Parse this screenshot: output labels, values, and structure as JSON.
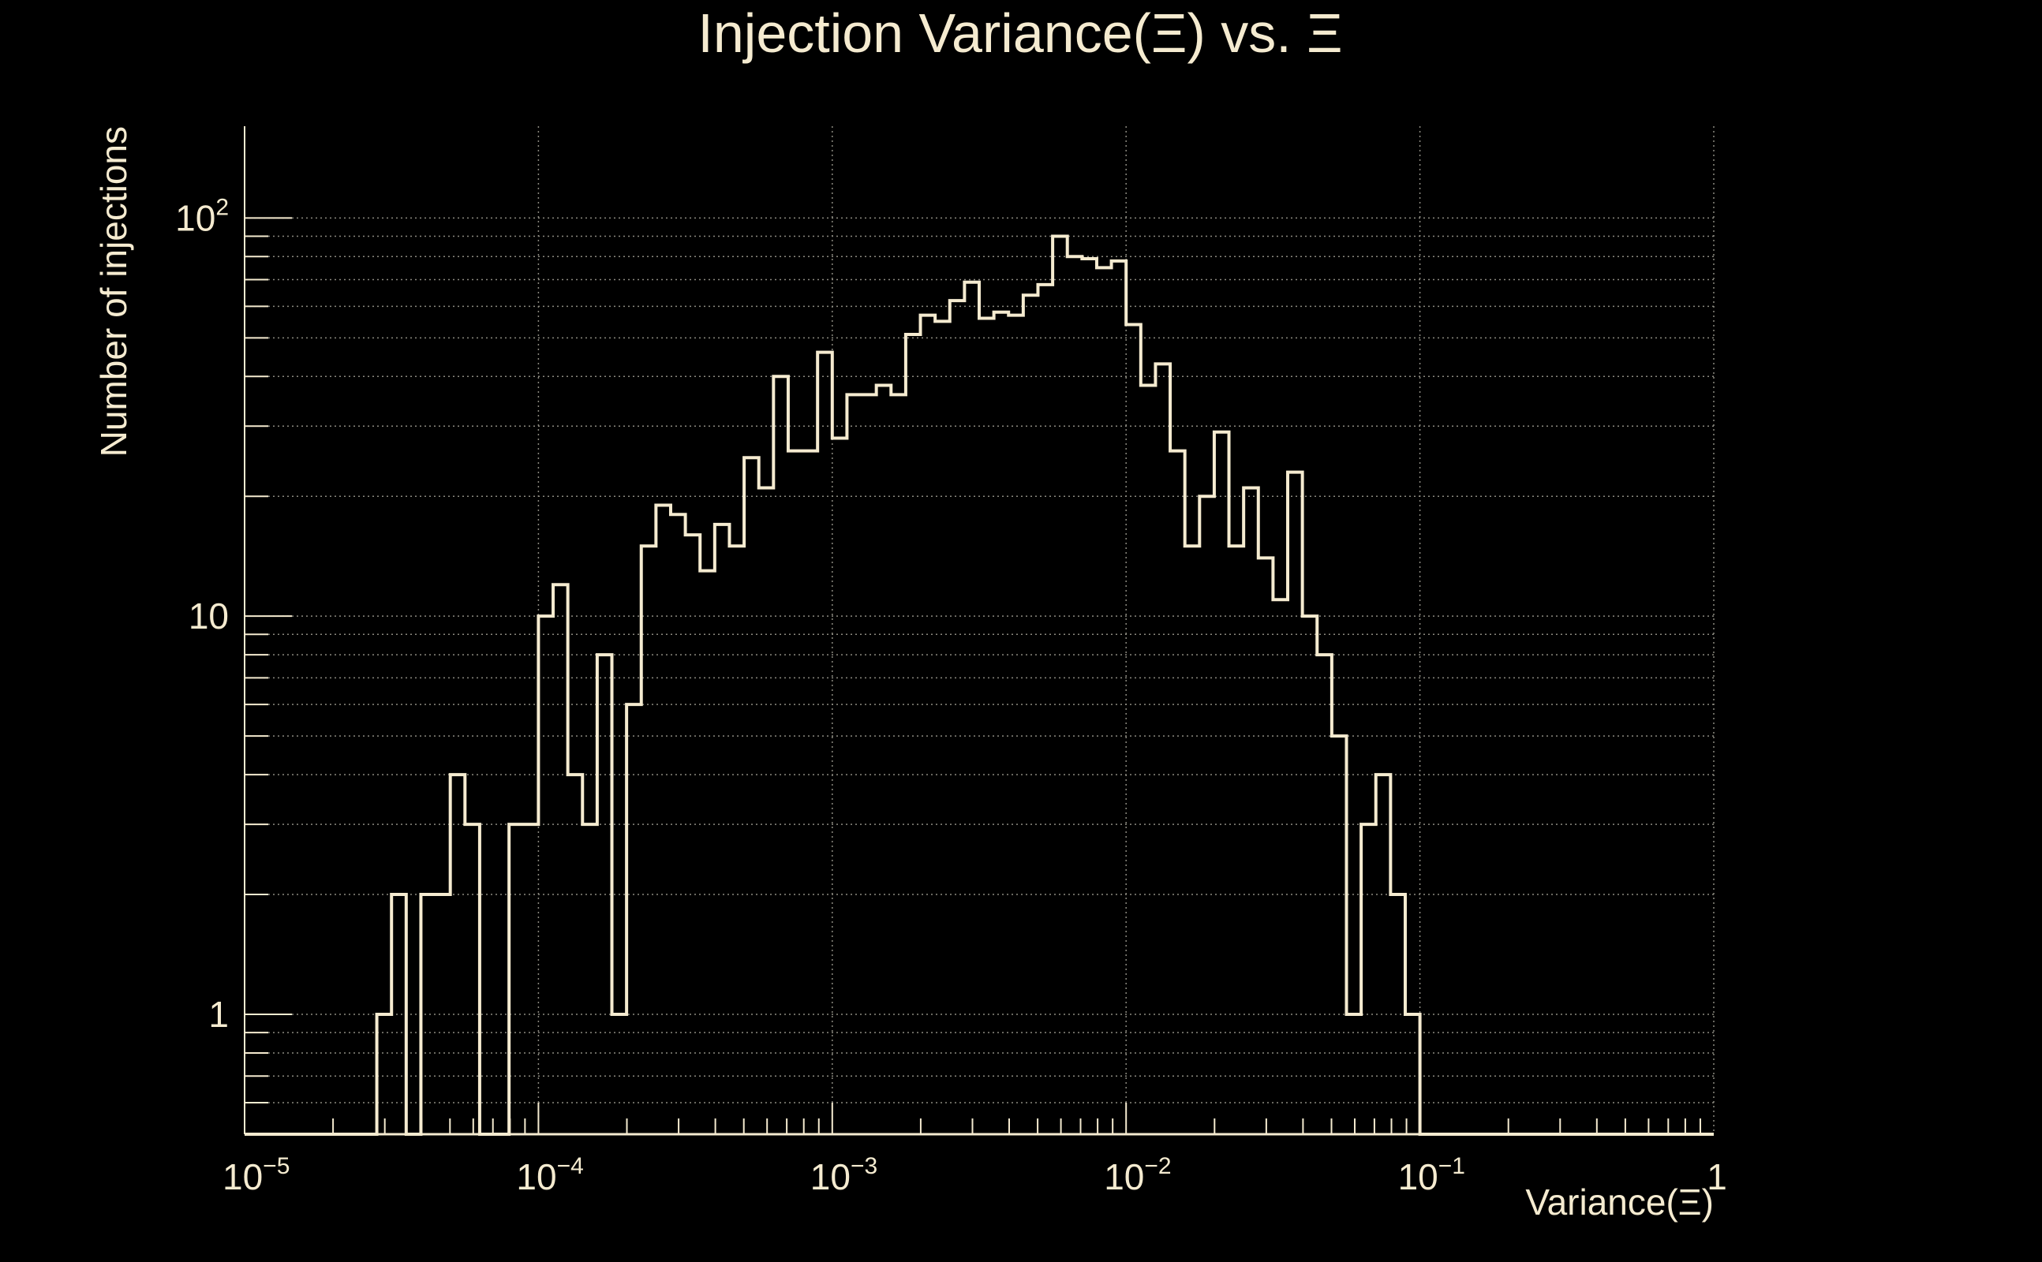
{
  "colors": {
    "background": "#000000",
    "foreground": "#f5ebd0",
    "grid": "#8c8a80"
  },
  "chart_data": {
    "type": "histogram",
    "title": "Injection Variance(Ξ) vs. Ξ",
    "xlabel": "Variance(Ξ)",
    "ylabel": "Number of injections",
    "x_scale": "log",
    "y_scale": "log",
    "xlim": [
      1e-05,
      1
    ],
    "ylim": [
      0.5,
      170
    ],
    "grid": true,
    "x_ticks": [
      {
        "value": 1e-05,
        "base": "10",
        "exp": "−5"
      },
      {
        "value": 0.0001,
        "base": "10",
        "exp": "−4"
      },
      {
        "value": 0.001,
        "base": "10",
        "exp": "−3"
      },
      {
        "value": 0.01,
        "base": "10",
        "exp": "−2"
      },
      {
        "value": 0.1,
        "base": "10",
        "exp": "−1"
      },
      {
        "value": 1,
        "base": "1",
        "exp": ""
      }
    ],
    "y_ticks": [
      {
        "value": 1,
        "base": "1",
        "exp": ""
      },
      {
        "value": 10,
        "base": "10",
        "exp": ""
      },
      {
        "value": 100,
        "base": "10",
        "exp": "2"
      }
    ],
    "bin_log10_min": -5,
    "bin_log10_width": 0.05,
    "counts": [
      0,
      0,
      0,
      0,
      0,
      0,
      0,
      0,
      0,
      1,
      2,
      0,
      2,
      2,
      4,
      3,
      0,
      0,
      3,
      3,
      10,
      12,
      4,
      3,
      8,
      1,
      6,
      15,
      19,
      18,
      16,
      13,
      17,
      15,
      25,
      21,
      40,
      26,
      26,
      46,
      28,
      36,
      36,
      38,
      36,
      51,
      57,
      55,
      62,
      69,
      56,
      58,
      57,
      64,
      68,
      90,
      80,
      79,
      75,
      78,
      54,
      38,
      43,
      26,
      15,
      20,
      29,
      15,
      21,
      14,
      11,
      23,
      10,
      8,
      5,
      1,
      3,
      4,
      2,
      1,
      0,
      0,
      0,
      0,
      0,
      0,
      0,
      0,
      0,
      0,
      0,
      0,
      0,
      0,
      0,
      0,
      0,
      0,
      0,
      0
    ]
  }
}
